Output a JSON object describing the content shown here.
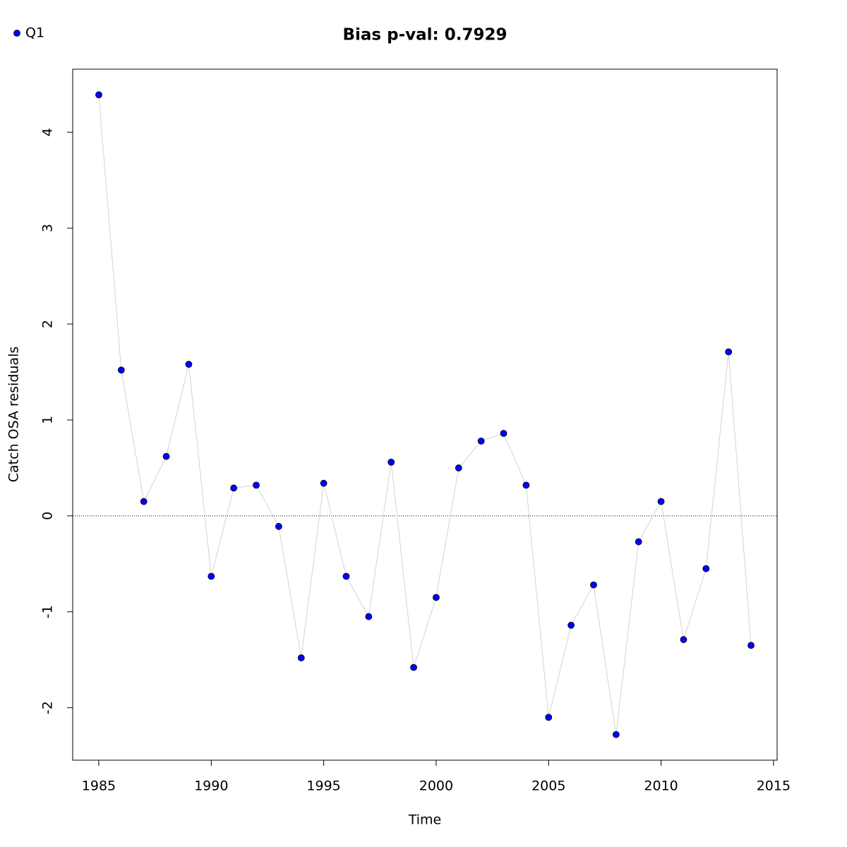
{
  "chart_data": {
    "type": "line",
    "title": "Bias p-val: 0.7929",
    "title_color": "#228b22",
    "xlabel": "Time",
    "ylabel": "Catch OSA residuals",
    "x": [
      1985,
      1986,
      1987,
      1988,
      1989,
      1990,
      1991,
      1992,
      1993,
      1994,
      1995,
      1996,
      1997,
      1998,
      1999,
      2000,
      2001,
      2002,
      2003,
      2004,
      2005,
      2006,
      2007,
      2008,
      2009,
      2010,
      2011,
      2012,
      2013,
      2014
    ],
    "series": [
      {
        "name": "Q1",
        "color": "#0000ff",
        "line_color": "#d3d3d3",
        "values": [
          4.39,
          1.52,
          0.15,
          0.62,
          1.58,
          -0.63,
          0.29,
          0.32,
          -0.11,
          -1.48,
          0.34,
          -0.63,
          -1.05,
          0.56,
          -1.58,
          -0.85,
          0.5,
          0.78,
          0.86,
          0.32,
          -2.1,
          -1.14,
          -0.72,
          -2.28,
          -0.27,
          0.15,
          -1.29,
          -0.55,
          1.71,
          -1.35
        ]
      }
    ],
    "hline": 0,
    "xlim": [
      1983.84,
      2015.16
    ],
    "ylim": [
      -2.547,
      4.657
    ],
    "xticks": [
      1985,
      1990,
      1995,
      2000,
      2005,
      2010,
      2015
    ],
    "yticks": [
      -2,
      -1,
      0,
      1,
      2,
      3,
      4
    ],
    "legend": "top-left"
  }
}
